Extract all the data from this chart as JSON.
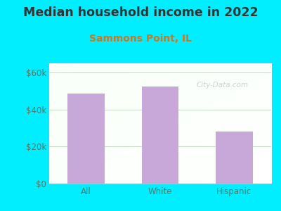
{
  "title": "Median household income in 2022",
  "subtitle": "Sammons Point, IL",
  "categories": [
    "All",
    "White",
    "Hispanic"
  ],
  "values": [
    48500,
    52500,
    28000
  ],
  "bar_color": "#c8a8d8",
  "title_fontsize": 12.5,
  "subtitle_fontsize": 10,
  "title_color": "#333333",
  "subtitle_color": "#cc7722",
  "tick_color": "#557766",
  "background_outer": "#00eeff",
  "ylim": [
    0,
    65000
  ],
  "yticks": [
    0,
    20000,
    40000,
    60000
  ],
  "ytick_labels": [
    "$0",
    "$20k",
    "$40k",
    "$60k"
  ],
  "watermark": "City-Data.com",
  "grid_color": "#ccddcc"
}
